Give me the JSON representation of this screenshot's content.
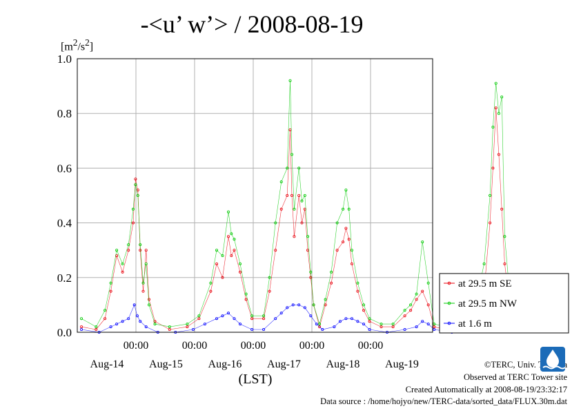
{
  "title": "-<u’ w’> / 2008-08-19",
  "unit_prefix": "[m",
  "unit_mid": "/s",
  "unit_suffix": "]",
  "credits": {
    "copyright": "©TERC, Univ. Tsukuba",
    "observed": "Observed at TERC Tower site",
    "created": "Created Automatically at 2008-08-19/23:32:17",
    "source": "Data source : /home/hojyo/new/TERC-data/sorted_data/FLUX.30m.dat"
  },
  "chart_data": {
    "type": "line",
    "xlabel": "(LST)",
    "ylim": [
      0,
      1.0
    ],
    "yticks": [
      "0.0",
      "0.2",
      "0.4",
      "0.6",
      "0.8",
      "1.0"
    ],
    "xrange_days": [
      0,
      6
    ],
    "time_ticks": [
      "00:00",
      "00:00",
      "00:00",
      "00:00",
      "00:00"
    ],
    "date_labels": [
      "Aug-14",
      "Aug-15",
      "Aug-16",
      "Aug-17",
      "Aug-18",
      "Aug-19"
    ],
    "grid": true,
    "legend_position": "right",
    "series": [
      {
        "name": "at 29.5 m SE",
        "color": "#e8000b",
        "points": [
          [
            0.0,
            0.02
          ],
          [
            0.25,
            0.01
          ],
          [
            0.4,
            0.05
          ],
          [
            0.5,
            0.15
          ],
          [
            0.6,
            0.28
          ],
          [
            0.7,
            0.22
          ],
          [
            0.8,
            0.3
          ],
          [
            0.88,
            0.4
          ],
          [
            0.92,
            0.56
          ],
          [
            0.96,
            0.52
          ],
          [
            1.0,
            0.3
          ],
          [
            1.05,
            0.15
          ],
          [
            1.1,
            0.3
          ],
          [
            1.15,
            0.12
          ],
          [
            1.25,
            0.04
          ],
          [
            1.5,
            0.01
          ],
          [
            1.8,
            0.02
          ],
          [
            2.0,
            0.05
          ],
          [
            2.2,
            0.15
          ],
          [
            2.3,
            0.25
          ],
          [
            2.4,
            0.2
          ],
          [
            2.5,
            0.35
          ],
          [
            2.55,
            0.28
          ],
          [
            2.6,
            0.3
          ],
          [
            2.7,
            0.22
          ],
          [
            2.8,
            0.12
          ],
          [
            2.9,
            0.05
          ],
          [
            3.1,
            0.05
          ],
          [
            3.2,
            0.15
          ],
          [
            3.3,
            0.3
          ],
          [
            3.4,
            0.45
          ],
          [
            3.5,
            0.5
          ],
          [
            3.55,
            0.74
          ],
          [
            3.58,
            0.5
          ],
          [
            3.62,
            0.35
          ],
          [
            3.7,
            0.5
          ],
          [
            3.75,
            0.4
          ],
          [
            3.8,
            0.45
          ],
          [
            3.85,
            0.3
          ],
          [
            3.9,
            0.2
          ],
          [
            3.95,
            0.1
          ],
          [
            4.05,
            0.02
          ],
          [
            4.15,
            0.1
          ],
          [
            4.25,
            0.18
          ],
          [
            4.35,
            0.3
          ],
          [
            4.45,
            0.33
          ],
          [
            4.5,
            0.38
          ],
          [
            4.55,
            0.34
          ],
          [
            4.6,
            0.25
          ],
          [
            4.7,
            0.15
          ],
          [
            4.8,
            0.08
          ],
          [
            4.9,
            0.04
          ],
          [
            5.1,
            0.02
          ],
          [
            5.3,
            0.02
          ],
          [
            5.5,
            0.06
          ],
          [
            5.6,
            0.08
          ],
          [
            5.7,
            0.12
          ],
          [
            5.8,
            0.15
          ],
          [
            5.9,
            0.1
          ],
          [
            6.0,
            0.02
          ],
          [
            6.2,
            0.01
          ],
          [
            6.5,
            0.03
          ],
          [
            6.7,
            0.06
          ],
          [
            6.85,
            0.15
          ],
          [
            6.95,
            0.4
          ],
          [
            7.0,
            0.6
          ],
          [
            7.05,
            0.82
          ],
          [
            7.1,
            0.65
          ],
          [
            7.15,
            0.45
          ],
          [
            7.2,
            0.25
          ],
          [
            7.3,
            0.08
          ],
          [
            7.5,
            0.02
          ],
          [
            7.6,
            0.05
          ],
          [
            7.65,
            0.07
          ]
        ]
      },
      {
        "name": "at 29.5 m NW",
        "color": "#00c800",
        "points": [
          [
            0.0,
            0.05
          ],
          [
            0.25,
            0.02
          ],
          [
            0.4,
            0.08
          ],
          [
            0.5,
            0.18
          ],
          [
            0.6,
            0.3
          ],
          [
            0.7,
            0.25
          ],
          [
            0.8,
            0.32
          ],
          [
            0.88,
            0.45
          ],
          [
            0.92,
            0.54
          ],
          [
            0.96,
            0.5
          ],
          [
            1.0,
            0.32
          ],
          [
            1.05,
            0.18
          ],
          [
            1.1,
            0.25
          ],
          [
            1.15,
            0.1
          ],
          [
            1.25,
            0.03
          ],
          [
            1.5,
            0.02
          ],
          [
            1.8,
            0.03
          ],
          [
            2.0,
            0.06
          ],
          [
            2.2,
            0.18
          ],
          [
            2.3,
            0.3
          ],
          [
            2.4,
            0.28
          ],
          [
            2.5,
            0.44
          ],
          [
            2.55,
            0.36
          ],
          [
            2.6,
            0.34
          ],
          [
            2.7,
            0.25
          ],
          [
            2.8,
            0.14
          ],
          [
            2.9,
            0.06
          ],
          [
            3.1,
            0.06
          ],
          [
            3.2,
            0.2
          ],
          [
            3.3,
            0.4
          ],
          [
            3.4,
            0.55
          ],
          [
            3.5,
            0.6
          ],
          [
            3.55,
            0.92
          ],
          [
            3.58,
            0.65
          ],
          [
            3.62,
            0.45
          ],
          [
            3.7,
            0.6
          ],
          [
            3.75,
            0.48
          ],
          [
            3.8,
            0.5
          ],
          [
            3.85,
            0.35
          ],
          [
            3.9,
            0.22
          ],
          [
            3.95,
            0.1
          ],
          [
            4.05,
            0.03
          ],
          [
            4.15,
            0.12
          ],
          [
            4.25,
            0.22
          ],
          [
            4.35,
            0.4
          ],
          [
            4.45,
            0.45
          ],
          [
            4.5,
            0.52
          ],
          [
            4.55,
            0.45
          ],
          [
            4.6,
            0.3
          ],
          [
            4.7,
            0.18
          ],
          [
            4.8,
            0.1
          ],
          [
            4.9,
            0.05
          ],
          [
            5.1,
            0.03
          ],
          [
            5.3,
            0.03
          ],
          [
            5.5,
            0.08
          ],
          [
            5.6,
            0.1
          ],
          [
            5.7,
            0.14
          ],
          [
            5.8,
            0.33
          ],
          [
            5.9,
            0.18
          ],
          [
            6.0,
            0.03
          ],
          [
            6.2,
            0.02
          ],
          [
            6.5,
            0.06
          ],
          [
            6.7,
            0.1
          ],
          [
            6.85,
            0.25
          ],
          [
            6.95,
            0.5
          ],
          [
            7.0,
            0.75
          ],
          [
            7.05,
            0.91
          ],
          [
            7.1,
            0.8
          ],
          [
            7.15,
            0.86
          ],
          [
            7.2,
            0.35
          ],
          [
            7.3,
            0.1
          ],
          [
            7.5,
            0.04
          ],
          [
            7.6,
            0.06
          ],
          [
            7.65,
            0.08
          ]
        ]
      },
      {
        "name": "at 1.6 m",
        "color": "#0000ff",
        "points": [
          [
            0.0,
            0.01
          ],
          [
            0.3,
            0.0
          ],
          [
            0.5,
            0.02
          ],
          [
            0.6,
            0.03
          ],
          [
            0.7,
            0.04
          ],
          [
            0.8,
            0.05
          ],
          [
            0.9,
            0.1
          ],
          [
            0.95,
            0.06
          ],
          [
            1.0,
            0.04
          ],
          [
            1.1,
            0.02
          ],
          [
            1.3,
            0.0
          ],
          [
            1.6,
            0.0
          ],
          [
            1.9,
            0.01
          ],
          [
            2.1,
            0.03
          ],
          [
            2.3,
            0.05
          ],
          [
            2.4,
            0.06
          ],
          [
            2.5,
            0.07
          ],
          [
            2.6,
            0.05
          ],
          [
            2.7,
            0.03
          ],
          [
            2.9,
            0.01
          ],
          [
            3.1,
            0.01
          ],
          [
            3.3,
            0.05
          ],
          [
            3.4,
            0.07
          ],
          [
            3.5,
            0.09
          ],
          [
            3.6,
            0.1
          ],
          [
            3.7,
            0.1
          ],
          [
            3.8,
            0.09
          ],
          [
            3.9,
            0.06
          ],
          [
            4.0,
            0.03
          ],
          [
            4.1,
            0.01
          ],
          [
            4.3,
            0.02
          ],
          [
            4.4,
            0.04
          ],
          [
            4.5,
            0.05
          ],
          [
            4.6,
            0.05
          ],
          [
            4.7,
            0.04
          ],
          [
            4.8,
            0.03
          ],
          [
            4.9,
            0.01
          ],
          [
            5.2,
            0.0
          ],
          [
            5.5,
            0.01
          ],
          [
            5.7,
            0.02
          ],
          [
            5.8,
            0.04
          ],
          [
            5.9,
            0.03
          ],
          [
            6.0,
            0.01
          ],
          [
            6.3,
            0.0
          ],
          [
            6.6,
            0.01
          ],
          [
            6.8,
            0.02
          ],
          [
            6.9,
            0.04
          ],
          [
            7.0,
            0.08
          ],
          [
            7.05,
            0.1
          ],
          [
            7.1,
            0.07
          ],
          [
            7.2,
            0.05
          ],
          [
            7.3,
            0.03
          ],
          [
            7.5,
            0.01
          ],
          [
            7.6,
            0.02
          ],
          [
            7.65,
            0.02
          ]
        ]
      }
    ]
  }
}
